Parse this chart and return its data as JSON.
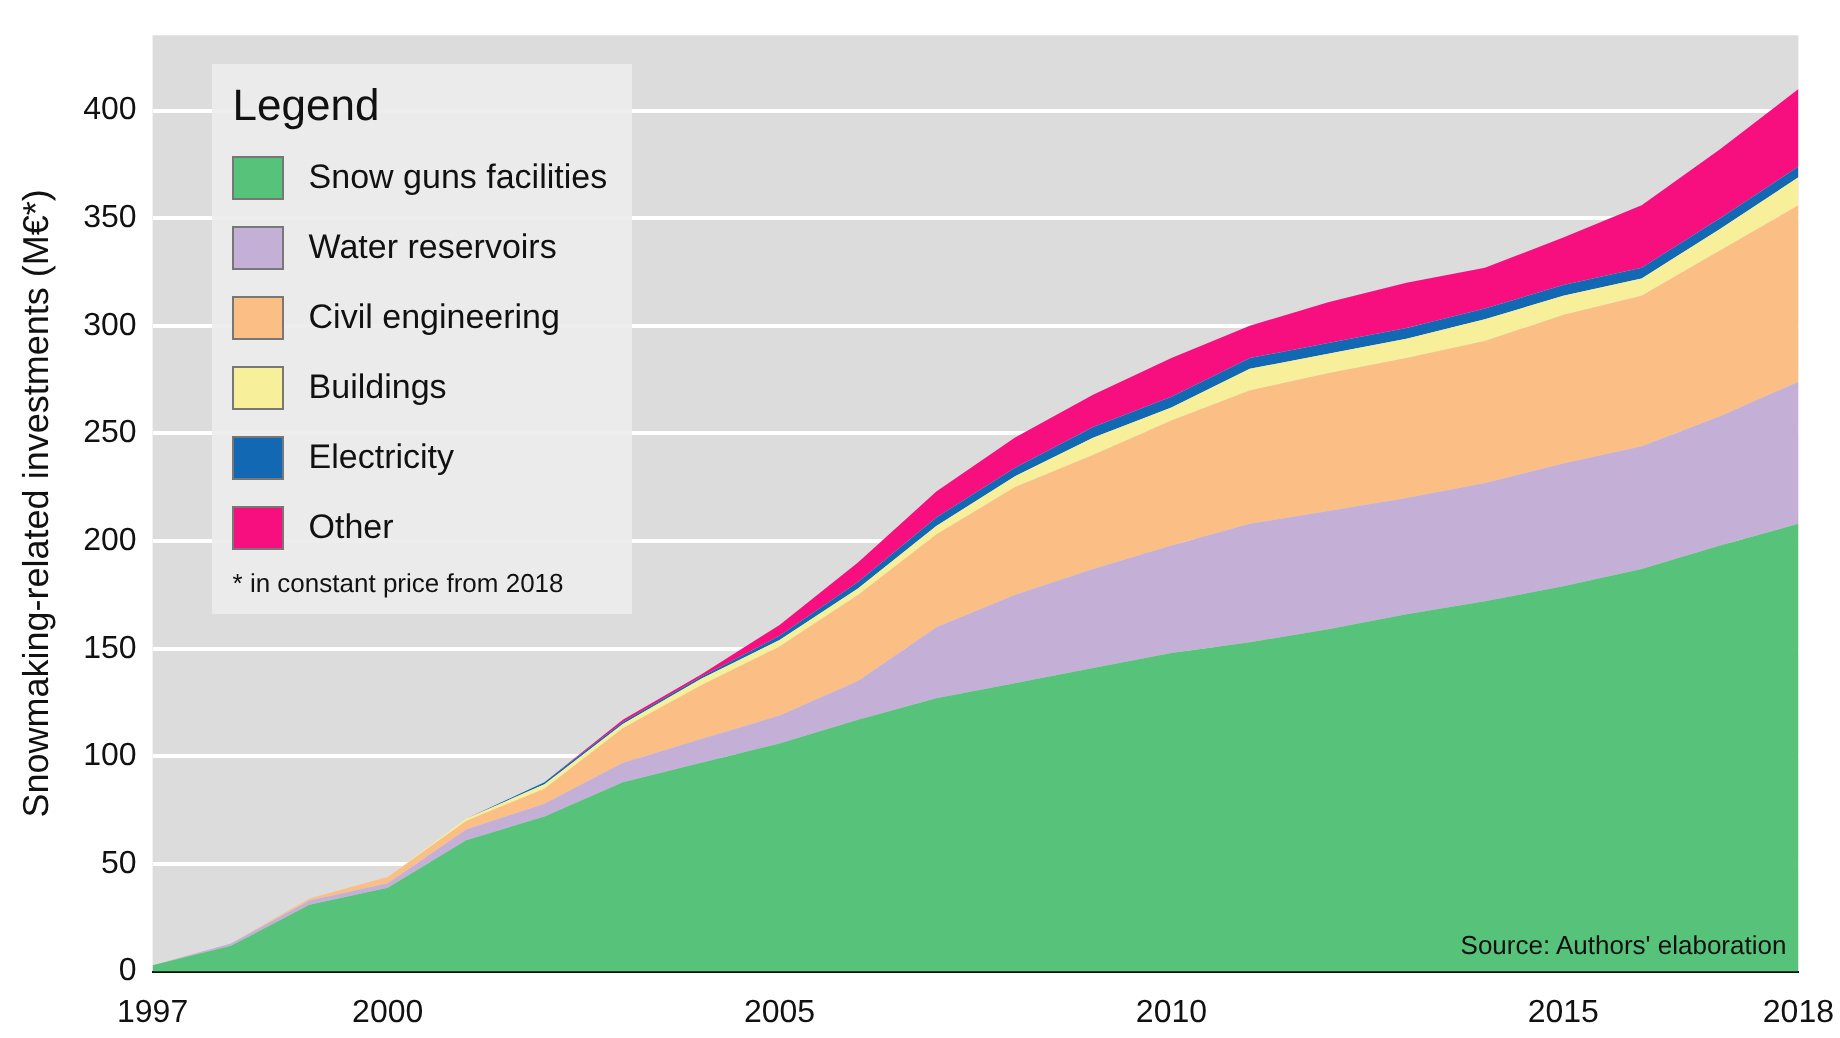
{
  "chart_data": {
    "type": "area",
    "stacked": true,
    "ylabel": "Snowmaking-related investments (M€*)",
    "legend_title": "Legend",
    "x": [
      1997,
      1998,
      1999,
      2000,
      2001,
      2002,
      2003,
      2004,
      2005,
      2006,
      2007,
      2008,
      2009,
      2010,
      2011,
      2012,
      2013,
      2014,
      2015,
      2016,
      2017,
      2018
    ],
    "series": [
      {
        "name": "Snow guns facilities",
        "color": "#57c27a",
        "values": [
          3,
          12,
          31,
          39,
          61,
          72,
          88,
          97,
          106,
          117,
          127,
          134,
          141,
          148,
          153,
          159,
          166,
          172,
          179,
          187,
          198,
          208
        ]
      },
      {
        "name": "Water reservoirs",
        "color": "#c4b0d6",
        "values": [
          0,
          1,
          2,
          2,
          5,
          6,
          9,
          11,
          13,
          18,
          33,
          41,
          46,
          50,
          55,
          55,
          54,
          55,
          57,
          57,
          60,
          66
        ]
      },
      {
        "name": "Civil engineering",
        "color": "#fbbf85",
        "values": [
          0,
          0,
          1,
          3,
          4,
          7,
          16,
          25,
          32,
          40,
          43,
          50,
          53,
          58,
          62,
          64,
          65,
          66,
          69,
          70,
          77,
          82
        ]
      },
      {
        "name": "Buildings",
        "color": "#f7ef9a",
        "values": [
          0,
          0,
          0,
          0,
          1,
          2,
          2,
          3,
          3,
          3,
          4,
          5,
          8,
          6,
          10,
          9,
          9,
          10,
          9,
          8,
          10,
          13
        ]
      },
      {
        "name": "Electricity",
        "color": "#1268b3",
        "values": [
          0,
          0,
          0,
          0,
          0,
          1,
          1,
          1,
          2,
          3,
          4,
          4,
          5,
          5,
          5,
          5,
          5,
          5,
          5,
          5,
          5,
          5
        ]
      },
      {
        "name": "Other",
        "color": "#f70f7f",
        "values": [
          0,
          0,
          0,
          0,
          0,
          0,
          1,
          1,
          5,
          9,
          12,
          14,
          15,
          18,
          15,
          19,
          21,
          19,
          22,
          29,
          32,
          36
        ]
      }
    ],
    "xlim": [
      1997,
      2018
    ],
    "xticks": [
      1997,
      2000,
      2005,
      2010,
      2015,
      2018
    ],
    "ylim": [
      0,
      435
    ],
    "yticks": [
      0,
      50,
      100,
      150,
      200,
      250,
      300,
      350,
      400
    ],
    "grid": "y",
    "legend": "top left",
    "annotations": [
      "* in constant price from 2018",
      "Source: Authors' elaboration"
    ]
  }
}
